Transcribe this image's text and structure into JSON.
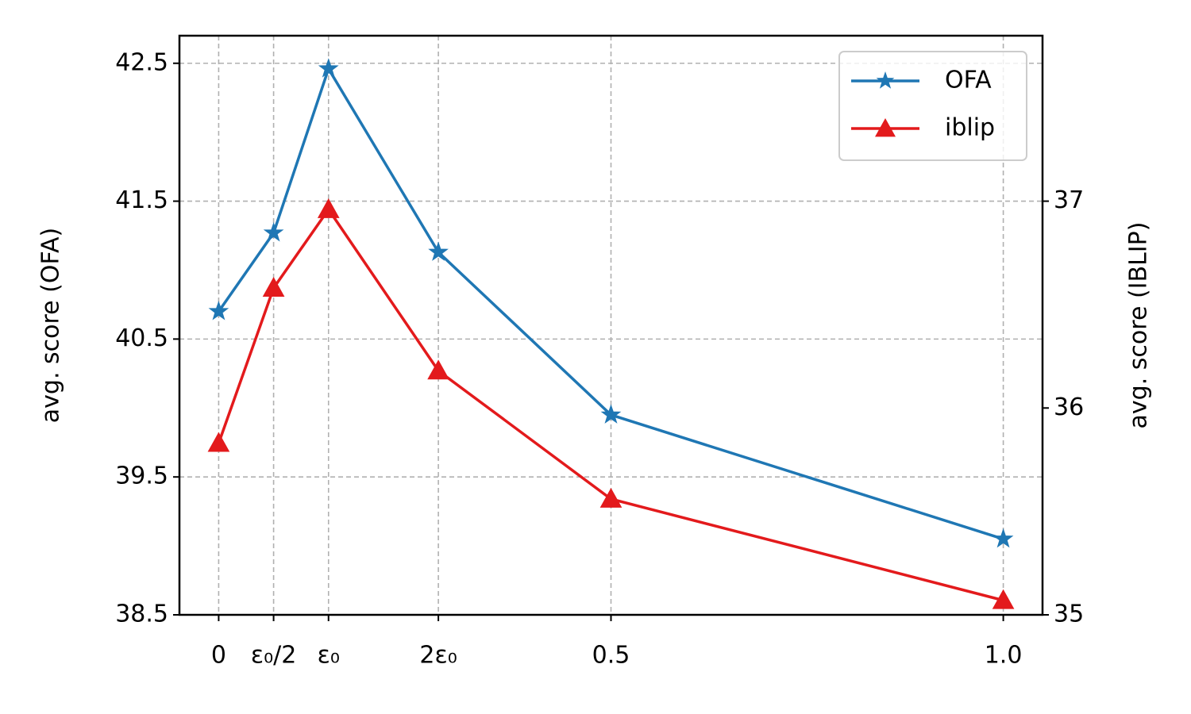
{
  "chart_data": {
    "type": "line",
    "x": [
      0,
      0.07,
      0.14,
      0.28,
      0.5,
      1.0
    ],
    "xlim": [
      -0.05,
      1.05
    ],
    "xticks": [
      0,
      {
        "value": 0.07,
        "label": "ε₀/2"
      },
      {
        "value": 0.14,
        "label": "ε₀"
      },
      {
        "value": 0.28,
        "label": "2ε₀"
      },
      0.5,
      {
        "value": 1.0,
        "label": "1.0"
      }
    ],
    "ylabel": "avg. score (OFA)",
    "ylim": [
      38.5,
      42.7
    ],
    "yticks": [
      38.5,
      39.5,
      40.5,
      41.5,
      42.5
    ],
    "y2label": "avg. score (IBLIP)",
    "y2lim": [
      35,
      37.8
    ],
    "y2ticks": [
      35,
      36,
      37
    ],
    "grid": true,
    "legend": "upper right",
    "series": [
      {
        "name": "OFA",
        "color": "#1f77b4",
        "marker": "star",
        "values": [
          40.7,
          41.27,
          42.46,
          41.13,
          39.95,
          39.05
        ]
      },
      {
        "name": "iblip",
        "color": "#e31a1c",
        "marker": "triangle",
        "axis": "y2",
        "values": [
          35.83,
          36.58,
          36.96,
          36.18,
          35.56,
          35.07
        ]
      }
    ]
  }
}
